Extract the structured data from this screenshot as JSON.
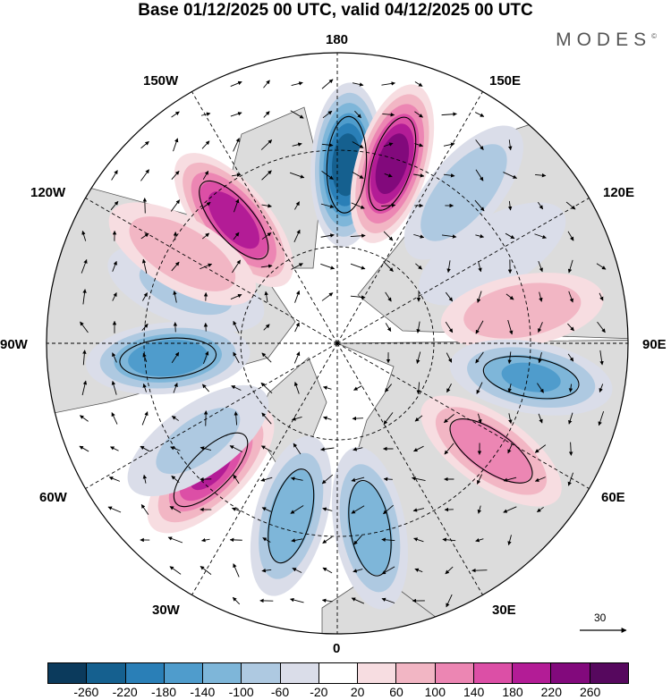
{
  "title": "Base 01/12/2025 00 UTC, valid 04/12/2025 00 UTC",
  "brand": "MODES",
  "brand_mark": "©",
  "longitude_labels": {
    "top": "180",
    "bottom": "0",
    "left": "90W",
    "right": "90E",
    "upper_left": "150W",
    "upper_right": "150E",
    "mid_left_upper": "120W",
    "mid_right_upper": "120E",
    "mid_left_lower": "60W",
    "mid_right_lower": "60E",
    "lower_left": "30W",
    "lower_right": "30E"
  },
  "vector_scale_label": "30",
  "colors": {
    "ocean": "#ffffff",
    "land": "#dcdcdc",
    "grid": "#000000",
    "coast": "#555555"
  },
  "chart_data": {
    "type": "heatmap",
    "projection": "north-polar-stereographic",
    "field": "geopotential height anomaly with wind vectors",
    "colorbar": {
      "ticks": [
        "-260",
        "-220",
        "-180",
        "-140",
        "-100",
        "-60",
        "-20",
        "20",
        "60",
        "100",
        "140",
        "180",
        "220",
        "260"
      ],
      "colors": [
        "#0b3a5c",
        "#15608f",
        "#2a7fb7",
        "#4f9ccc",
        "#7eb6d9",
        "#aec9e1",
        "#dadde9",
        "#ffffff",
        "#f7dde1",
        "#f2b6c4",
        "#ec86b3",
        "#dc4fa6",
        "#b31c96",
        "#82097c",
        "#56085e"
      ]
    },
    "anomalies": [
      {
        "lon": 177,
        "value": -240,
        "label": "strong negative"
      },
      {
        "lon": 163,
        "value": 250,
        "label": "strong positive"
      },
      {
        "lon": 140,
        "value": -80,
        "label": "weak negative"
      },
      {
        "lon": 120,
        "value": -40,
        "label": "weak negative"
      },
      {
        "lon": 100,
        "value": 80,
        "label": "moderate positive"
      },
      {
        "lon": 80,
        "value": -140,
        "label": "negative"
      },
      {
        "lon": 55,
        "value": 110,
        "label": "positive"
      },
      {
        "lon": 10,
        "value": -120,
        "label": "negative"
      },
      {
        "lon": -15,
        "value": -110,
        "label": "negative"
      },
      {
        "lon": -45,
        "value": 180,
        "label": "positive"
      },
      {
        "lon": -55,
        "value": -60,
        "label": "weak negative"
      },
      {
        "lon": -85,
        "value": -160,
        "label": "negative"
      },
      {
        "lon": -110,
        "value": -60,
        "label": "weak negative"
      },
      {
        "lon": -140,
        "value": 190,
        "label": "positive"
      },
      {
        "lon": -120,
        "value": 70,
        "label": "weak positive"
      }
    ]
  }
}
